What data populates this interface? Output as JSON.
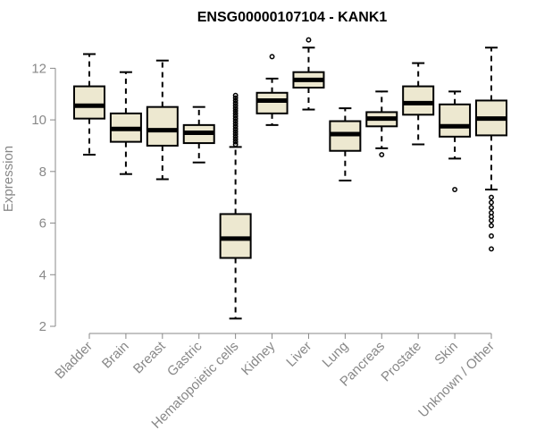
{
  "chart_data": {
    "type": "boxplot",
    "title": "ENSG00000107104 - KANK1",
    "xlabel": "",
    "ylabel": "Expression",
    "ylim": [
      2,
      13
    ],
    "yticks": [
      2,
      4,
      6,
      8,
      10,
      12
    ],
    "box_fill": "#EDE8D0",
    "box_stroke": "#000000",
    "axis_color": "#888888",
    "categories": [
      "Bladder",
      "Brain",
      "Breast",
      "Gastric",
      "Hematopoietic cells",
      "Kidney",
      "Liver",
      "Lung",
      "Pancreas",
      "Prostate",
      "Skin",
      "Unknown / Other"
    ],
    "boxes": [
      {
        "category": "Bladder",
        "whisker_low": 8.65,
        "q1": 10.05,
        "median": 10.55,
        "q3": 11.3,
        "whisker_high": 12.55,
        "outliers": []
      },
      {
        "category": "Brain",
        "whisker_low": 7.9,
        "q1": 9.15,
        "median": 9.65,
        "q3": 10.25,
        "whisker_high": 11.85,
        "outliers": []
      },
      {
        "category": "Breast",
        "whisker_low": 7.7,
        "q1": 9.0,
        "median": 9.6,
        "q3": 10.5,
        "whisker_high": 12.3,
        "outliers": []
      },
      {
        "category": "Gastric",
        "whisker_low": 8.35,
        "q1": 9.1,
        "median": 9.5,
        "q3": 9.8,
        "whisker_high": 10.5,
        "outliers": []
      },
      {
        "category": "Hematopoietic cells",
        "whisker_low": 2.3,
        "q1": 4.65,
        "median": 5.4,
        "q3": 6.35,
        "whisker_high": 8.95,
        "outliers": [
          9.05,
          9.15,
          9.25,
          9.35,
          9.45,
          9.55,
          9.65,
          9.75,
          9.85,
          9.95,
          10.05,
          10.15,
          10.25,
          10.35,
          10.45,
          10.55,
          10.65,
          10.75,
          10.85,
          10.95
        ]
      },
      {
        "category": "Kidney",
        "whisker_low": 9.8,
        "q1": 10.25,
        "median": 10.75,
        "q3": 11.05,
        "whisker_high": 11.6,
        "outliers": [
          12.45
        ]
      },
      {
        "category": "Liver",
        "whisker_low": 10.4,
        "q1": 11.25,
        "median": 11.55,
        "q3": 11.85,
        "whisker_high": 12.8,
        "outliers": [
          13.1
        ]
      },
      {
        "category": "Lung",
        "whisker_low": 7.65,
        "q1": 8.8,
        "median": 9.45,
        "q3": 9.95,
        "whisker_high": 10.45,
        "outliers": []
      },
      {
        "category": "Pancreas",
        "whisker_low": 8.9,
        "q1": 9.75,
        "median": 10.05,
        "q3": 10.3,
        "whisker_high": 11.1,
        "outliers": [
          8.65
        ]
      },
      {
        "category": "Prostate",
        "whisker_low": 9.05,
        "q1": 10.2,
        "median": 10.65,
        "q3": 11.3,
        "whisker_high": 12.2,
        "outliers": []
      },
      {
        "category": "Skin",
        "whisker_low": 8.5,
        "q1": 9.35,
        "median": 9.75,
        "q3": 10.6,
        "whisker_high": 11.1,
        "outliers": [
          7.3
        ]
      },
      {
        "category": "Unknown / Other",
        "whisker_low": 7.3,
        "q1": 9.4,
        "median": 10.05,
        "q3": 10.75,
        "whisker_high": 12.8,
        "outliers": [
          7.0,
          6.8,
          6.6,
          6.4,
          6.25,
          6.1,
          5.9,
          5.5,
          5.0
        ]
      }
    ]
  }
}
